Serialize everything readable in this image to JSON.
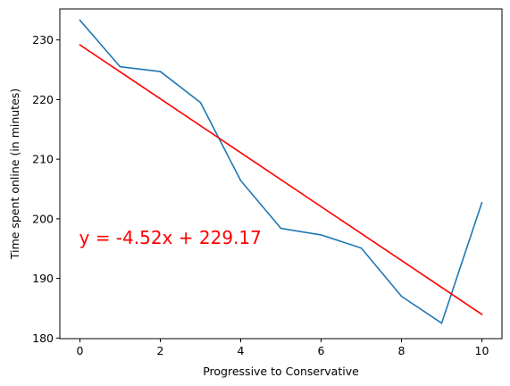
{
  "chart_data": {
    "type": "line",
    "title": "",
    "xlabel": "Progressive to Conservative",
    "ylabel": "Time spent online (in minutes)",
    "xlim": [
      -0.5,
      10.5
    ],
    "ylim": [
      179.9,
      235.2
    ],
    "xticks": [
      0,
      2,
      4,
      6,
      8,
      10
    ],
    "yticks": [
      180,
      190,
      200,
      210,
      220,
      230
    ],
    "grid": false,
    "legend": "none",
    "series": [
      {
        "color": "#1f77b4",
        "x": [
          0,
          1,
          2,
          3,
          4,
          5,
          6,
          7,
          8,
          9,
          10
        ],
        "y": [
          233.3,
          225.5,
          224.7,
          219.5,
          206.4,
          198.4,
          197.3,
          195.1,
          187.0,
          182.5,
          202.7
        ]
      },
      {
        "color": "#ff0000",
        "x": [
          0,
          10
        ],
        "y": [
          229.17,
          183.97
        ]
      }
    ],
    "annotations": [
      {
        "text": "y = -4.52x + 229.17",
        "x": 0,
        "y": 195.8,
        "color": "#ff0000"
      }
    ]
  }
}
